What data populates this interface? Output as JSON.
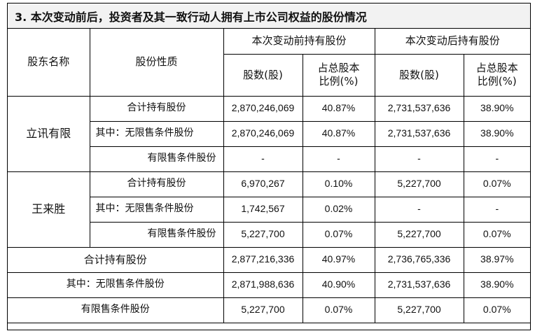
{
  "title": "3. 本次变动前后，投资者及其一致行动人拥有上市公司权益的股份情况",
  "header": {
    "holder_name": "股东名称",
    "share_nature": "股份性质",
    "before": "本次变动前持有股份",
    "after": "本次变动后持有股份",
    "shares": "股数(股)",
    "ratio_line1": "占总股本",
    "ratio_line2": "比例(%)"
  },
  "holders": [
    {
      "name": "立讯有限",
      "rows": [
        {
          "label": "合计持有股份",
          "before_shares": "2,870,246,069",
          "before_ratio": "40.87%",
          "after_shares": "2,731,537,636",
          "after_ratio": "38.90%"
        },
        {
          "label": "其中：无限售条件股份",
          "before_shares": "2,870,246,069",
          "before_ratio": "40.87%",
          "after_shares": "2,731,537,636",
          "after_ratio": "38.90%"
        },
        {
          "label": "有限售条件股份",
          "before_shares": "-",
          "before_ratio": "-",
          "after_shares": "-",
          "after_ratio": "-"
        }
      ]
    },
    {
      "name": "王来胜",
      "rows": [
        {
          "label": "合计持有股份",
          "before_shares": "6,970,267",
          "before_ratio": "0.10%",
          "after_shares": "5,227,700",
          "after_ratio": "0.07%"
        },
        {
          "label": "其中：无限售条件股份",
          "before_shares": "1,742,567",
          "before_ratio": "0.02%",
          "after_shares": "-",
          "after_ratio": "-"
        },
        {
          "label": "有限售条件股份",
          "before_shares": "5,227,700",
          "before_ratio": "0.07%",
          "after_shares": "5,227,700",
          "after_ratio": "0.07%"
        }
      ]
    }
  ],
  "totals": [
    {
      "label": "合计持有股份",
      "before_shares": "2,877,216,336",
      "before_ratio": "40.97%",
      "after_shares": "2,736,765,336",
      "after_ratio": "38.97%"
    },
    {
      "label": "其中：无限售条件股份",
      "before_shares": "2,871,988,636",
      "before_ratio": "40.90%",
      "after_shares": "2,731,537,636",
      "after_ratio": "38.90%"
    },
    {
      "label": "有限售条件股份",
      "before_shares": "5,227,700",
      "before_ratio": "0.07%",
      "after_shares": "5,227,700",
      "after_ratio": "0.07%"
    }
  ]
}
